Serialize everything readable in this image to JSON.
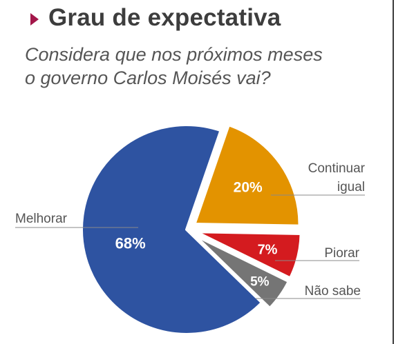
{
  "header": {
    "title": "Grau de expectativa",
    "subtitle_line1": "Considera que nos próximos meses",
    "subtitle_line2": "o governo Carlos Moisés vai?",
    "marker_color": "#a3174a"
  },
  "chart_data": {
    "type": "pie",
    "title": "Grau de expectativa",
    "subtitle": "Considera que nos próximos meses o governo Carlos Moisés vai?",
    "categories": [
      "Melhorar",
      "Continuar igual",
      "Piorar",
      "Não sabe"
    ],
    "values": [
      68,
      20,
      7,
      5
    ],
    "value_labels": [
      "68%",
      "20%",
      "7%",
      "5%"
    ],
    "label_lines": [
      [
        "Melhorar"
      ],
      [
        "Continuar",
        "igual"
      ],
      [
        "Piorar"
      ],
      [
        "Não sabe"
      ]
    ],
    "colors": [
      "#2e53a1",
      "#e39300",
      "#d41b1f",
      "#757575"
    ],
    "exploded": [
      false,
      true,
      true,
      true
    ],
    "label_text_colors": [
      "#ffffff",
      "#ffffff",
      "#ffffff",
      "#ffffff"
    ],
    "legend": "none"
  }
}
